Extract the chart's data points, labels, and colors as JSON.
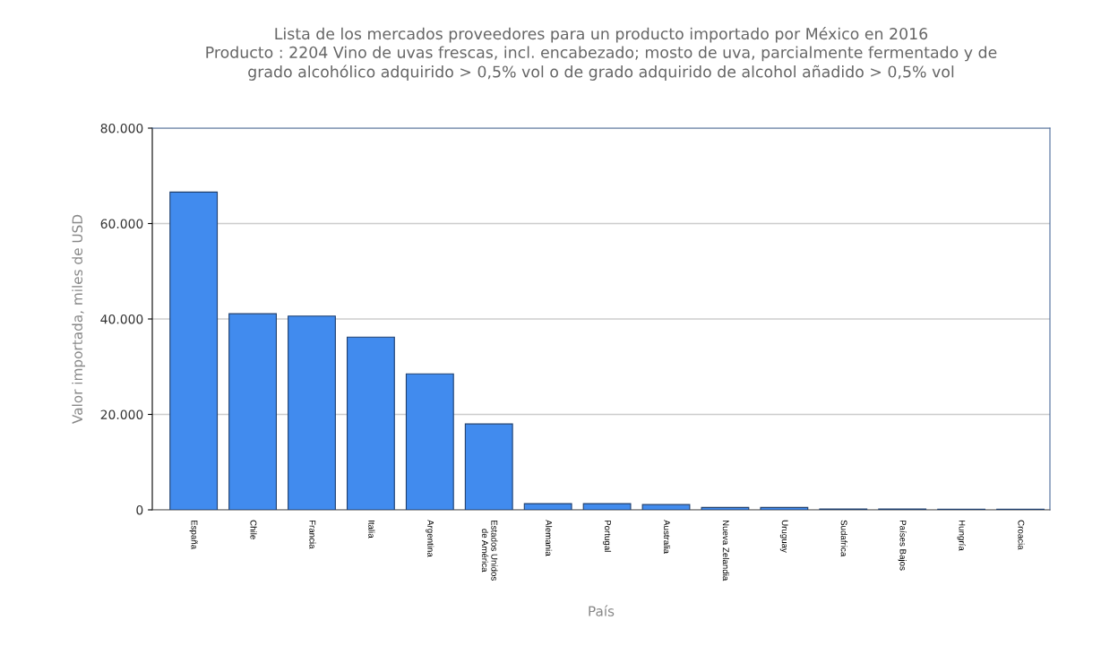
{
  "chart_data": {
    "type": "bar",
    "title": "Lista de los mercados proveedores para un producto importado por México en 2016\nProducto : 2204 Vino de uvas frescas, incl. encabezado; mosto de uva, parcialmente fermentado y de\ngrado alcohólico adquirido > 0,5% vol o de grado adquirido de alcohol añadido > 0,5% vol",
    "xlabel": "País",
    "ylabel": "Valor importada, miles de USD",
    "categories": [
      "España",
      "Chile",
      "Francia",
      "Italia",
      "Argentina",
      "Estados Unidos\nde América",
      "Alemania",
      "Portugal",
      "Australia",
      "Nueva Zelandia",
      "Uruguay",
      "Sudafrica",
      "Países Bajos",
      "Hungría",
      "Croacia"
    ],
    "values": [
      66600,
      41100,
      40600,
      36200,
      28500,
      18000,
      1300,
      1300,
      1100,
      500,
      500,
      200,
      200,
      150,
      150
    ],
    "color": "#418bee",
    "ylim": [
      0,
      80000
    ],
    "yticks": [
      {
        "value": 0,
        "label": "0"
      },
      {
        "value": 20000,
        "label": "20.000"
      },
      {
        "value": 40000,
        "label": "40.000"
      },
      {
        "value": 60000,
        "label": "60.000"
      },
      {
        "value": 80000,
        "label": "80.000"
      }
    ],
    "grid": "y"
  }
}
